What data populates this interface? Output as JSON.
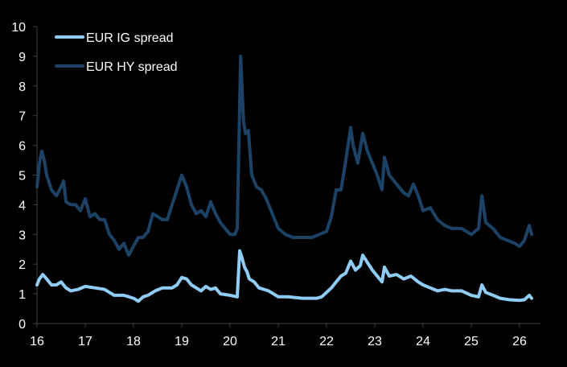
{
  "chart_data": {
    "type": "line",
    "title": "",
    "xlabel": "",
    "ylabel": "",
    "xlim": [
      16,
      26.43
    ],
    "ylim": [
      0,
      10
    ],
    "grid": false,
    "legend_position": "top-left",
    "x_ticks": [
      16,
      17,
      18,
      19,
      20,
      21,
      22,
      23,
      24,
      25,
      26
    ],
    "x_tick_labels": [
      "16",
      "17",
      "18",
      "19",
      "20",
      "21",
      "22",
      "23",
      "24",
      "25",
      "26"
    ],
    "y_ticks": [
      0,
      1,
      2,
      3,
      4,
      5,
      6,
      7,
      8,
      9,
      10
    ],
    "y_tick_labels": [
      "0",
      "1",
      "2",
      "3",
      "4",
      "5",
      "6",
      "7",
      "8",
      "9",
      "10"
    ],
    "series": [
      {
        "name": "EUR IG spread",
        "color": "#8fcdf7",
        "x": [
          16.0,
          16.05,
          16.12,
          16.2,
          16.3,
          16.4,
          16.5,
          16.6,
          16.7,
          16.85,
          17.0,
          17.2,
          17.4,
          17.5,
          17.6,
          17.8,
          18.0,
          18.1,
          18.2,
          18.3,
          18.45,
          18.6,
          18.8,
          18.9,
          19.0,
          19.1,
          19.2,
          19.3,
          19.4,
          19.5,
          19.6,
          19.7,
          19.8,
          20.0,
          20.15,
          20.2,
          20.25,
          20.3,
          20.35,
          20.4,
          20.5,
          20.6,
          20.8,
          21.0,
          21.2,
          21.5,
          21.8,
          21.9,
          22.0,
          22.1,
          22.2,
          22.3,
          22.4,
          22.5,
          22.6,
          22.7,
          22.75,
          22.85,
          22.95,
          23.1,
          23.15,
          23.2,
          23.3,
          23.45,
          23.6,
          23.75,
          23.9,
          24.0,
          24.15,
          24.3,
          24.45,
          24.6,
          24.8,
          25.0,
          25.15,
          25.22,
          25.3,
          25.45,
          25.6,
          25.8,
          26.0,
          26.1,
          26.2,
          26.25
        ],
        "y": [
          1.3,
          1.5,
          1.65,
          1.5,
          1.3,
          1.3,
          1.4,
          1.2,
          1.1,
          1.15,
          1.25,
          1.2,
          1.15,
          1.05,
          0.95,
          0.95,
          0.85,
          0.75,
          0.9,
          0.95,
          1.1,
          1.2,
          1.2,
          1.3,
          1.55,
          1.5,
          1.3,
          1.2,
          1.1,
          1.25,
          1.15,
          1.2,
          1.0,
          0.95,
          0.9,
          2.45,
          2.2,
          1.9,
          1.75,
          1.5,
          1.4,
          1.2,
          1.1,
          0.9,
          0.9,
          0.85,
          0.85,
          0.9,
          1.05,
          1.2,
          1.4,
          1.6,
          1.7,
          2.1,
          1.8,
          1.95,
          2.3,
          2.05,
          1.8,
          1.5,
          1.4,
          1.9,
          1.6,
          1.65,
          1.5,
          1.6,
          1.4,
          1.3,
          1.2,
          1.1,
          1.15,
          1.1,
          1.1,
          0.95,
          0.9,
          1.3,
          1.05,
          0.95,
          0.85,
          0.8,
          0.78,
          0.8,
          0.95,
          0.85
        ]
      },
      {
        "name": "EUR HY spread",
        "color": "#1c4366",
        "x": [
          16.0,
          16.05,
          16.1,
          16.15,
          16.2,
          16.3,
          16.4,
          16.5,
          16.55,
          16.6,
          16.7,
          16.8,
          16.9,
          17.0,
          17.1,
          17.2,
          17.3,
          17.4,
          17.5,
          17.6,
          17.7,
          17.8,
          17.9,
          18.0,
          18.1,
          18.2,
          18.3,
          18.4,
          18.5,
          18.6,
          18.7,
          18.8,
          18.9,
          19.0,
          19.1,
          19.2,
          19.3,
          19.4,
          19.5,
          19.6,
          19.7,
          19.8,
          19.9,
          20.0,
          20.1,
          20.15,
          20.22,
          20.28,
          20.32,
          20.38,
          20.45,
          20.55,
          20.65,
          20.75,
          20.85,
          21.0,
          21.15,
          21.3,
          21.5,
          21.7,
          21.85,
          22.0,
          22.1,
          22.2,
          22.3,
          22.4,
          22.5,
          22.55,
          22.65,
          22.75,
          22.85,
          22.95,
          23.05,
          23.15,
          23.2,
          23.3,
          23.45,
          23.6,
          23.7,
          23.8,
          23.9,
          24.0,
          24.15,
          24.3,
          24.45,
          24.6,
          24.8,
          25.0,
          25.15,
          25.22,
          25.3,
          25.45,
          25.6,
          25.75,
          25.9,
          26.0,
          26.1,
          26.2,
          26.25
        ],
        "y": [
          4.6,
          5.4,
          5.8,
          5.5,
          5.0,
          4.5,
          4.3,
          4.6,
          4.8,
          4.1,
          4.0,
          4.0,
          3.8,
          4.2,
          3.6,
          3.7,
          3.5,
          3.5,
          3.0,
          2.8,
          2.5,
          2.7,
          2.3,
          2.6,
          2.9,
          2.9,
          3.1,
          3.7,
          3.6,
          3.5,
          3.5,
          4.0,
          4.5,
          5.0,
          4.6,
          4.0,
          3.7,
          3.8,
          3.6,
          4.1,
          3.7,
          3.4,
          3.2,
          3.0,
          3.0,
          3.2,
          9.0,
          6.8,
          6.4,
          6.5,
          5.0,
          4.6,
          4.5,
          4.2,
          3.8,
          3.2,
          3.0,
          2.9,
          2.9,
          2.9,
          3.0,
          3.1,
          3.6,
          4.5,
          4.5,
          5.5,
          6.6,
          6.0,
          5.4,
          6.4,
          5.8,
          5.4,
          5.0,
          4.5,
          5.6,
          5.0,
          4.7,
          4.4,
          4.3,
          4.7,
          4.3,
          3.8,
          3.9,
          3.5,
          3.3,
          3.2,
          3.2,
          3.0,
          3.2,
          4.3,
          3.4,
          3.2,
          2.9,
          2.8,
          2.7,
          2.6,
          2.8,
          3.3,
          3.0
        ]
      }
    ]
  }
}
